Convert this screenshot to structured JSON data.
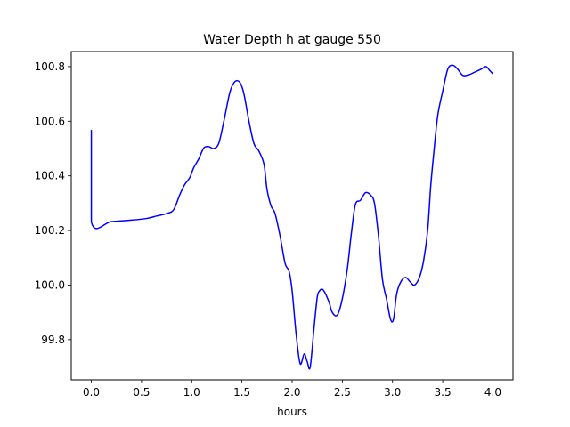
{
  "chart_data": {
    "type": "line",
    "title": "Water Depth h at gauge 550",
    "xlabel": "hours",
    "ylabel": "",
    "xlim": [
      -0.2,
      4.2
    ],
    "ylim": [
      99.653,
      100.855
    ],
    "grid": false,
    "x_ticks": [
      0.0,
      0.5,
      1.0,
      1.5,
      2.0,
      2.5,
      3.0,
      3.5,
      4.0
    ],
    "x_tick_labels": [
      "0.0",
      "0.5",
      "1.0",
      "1.5",
      "2.0",
      "2.5",
      "3.0",
      "3.5",
      "4.0"
    ],
    "y_ticks": [
      99.8,
      100.0,
      100.2,
      100.4,
      100.6,
      100.8
    ],
    "y_tick_labels": [
      "99.8",
      "100.0",
      "100.2",
      "100.4",
      "100.6",
      "100.8"
    ],
    "series": [
      {
        "color": "#0000ff",
        "x": [
          0.0,
          0.0,
          0.2,
          0.4,
          0.55,
          0.65,
          0.75,
          0.82,
          0.88,
          0.93,
          0.98,
          1.02,
          1.07,
          1.12,
          1.17,
          1.22,
          1.27,
          1.32,
          1.38,
          1.43,
          1.48,
          1.52,
          1.57,
          1.62,
          1.67,
          1.72,
          1.75,
          1.79,
          1.83,
          1.88,
          1.93,
          1.97,
          2.0,
          2.04,
          2.08,
          2.12,
          2.15,
          2.18,
          2.22,
          2.25,
          2.27,
          2.3,
          2.33,
          2.37,
          2.4,
          2.45,
          2.5,
          2.55,
          2.59,
          2.63,
          2.68,
          2.73,
          2.78,
          2.82,
          2.86,
          2.9,
          2.94,
          2.98,
          3.01,
          3.04,
          3.08,
          3.13,
          3.18,
          3.22,
          3.27,
          3.31,
          3.35,
          3.38,
          3.41,
          3.45,
          3.5,
          3.55,
          3.6,
          3.65,
          3.7,
          3.76,
          3.82,
          3.88,
          3.93,
          3.97,
          4.0
        ],
        "y": [
          100.568,
          100.232,
          100.233,
          100.238,
          100.244,
          100.253,
          100.262,
          100.276,
          100.33,
          100.368,
          100.393,
          100.43,
          100.462,
          100.502,
          100.507,
          100.5,
          100.52,
          100.6,
          100.706,
          100.745,
          100.742,
          100.7,
          100.6,
          100.518,
          100.49,
          100.442,
          100.35,
          100.29,
          100.262,
          100.18,
          100.08,
          100.05,
          99.98,
          99.82,
          99.712,
          99.748,
          99.72,
          99.7,
          99.85,
          99.955,
          99.977,
          99.985,
          99.97,
          99.935,
          99.9,
          99.89,
          99.95,
          100.06,
          100.19,
          100.295,
          100.31,
          100.338,
          100.33,
          100.3,
          100.18,
          100.02,
          99.95,
          99.875,
          99.875,
          99.965,
          100.01,
          100.028,
          100.01,
          100.0,
          100.03,
          100.09,
          100.2,
          100.36,
          100.48,
          100.62,
          100.71,
          100.79,
          100.805,
          100.79,
          100.768,
          100.77,
          100.78,
          100.79,
          100.8,
          100.785,
          100.773
        ]
      }
    ]
  }
}
